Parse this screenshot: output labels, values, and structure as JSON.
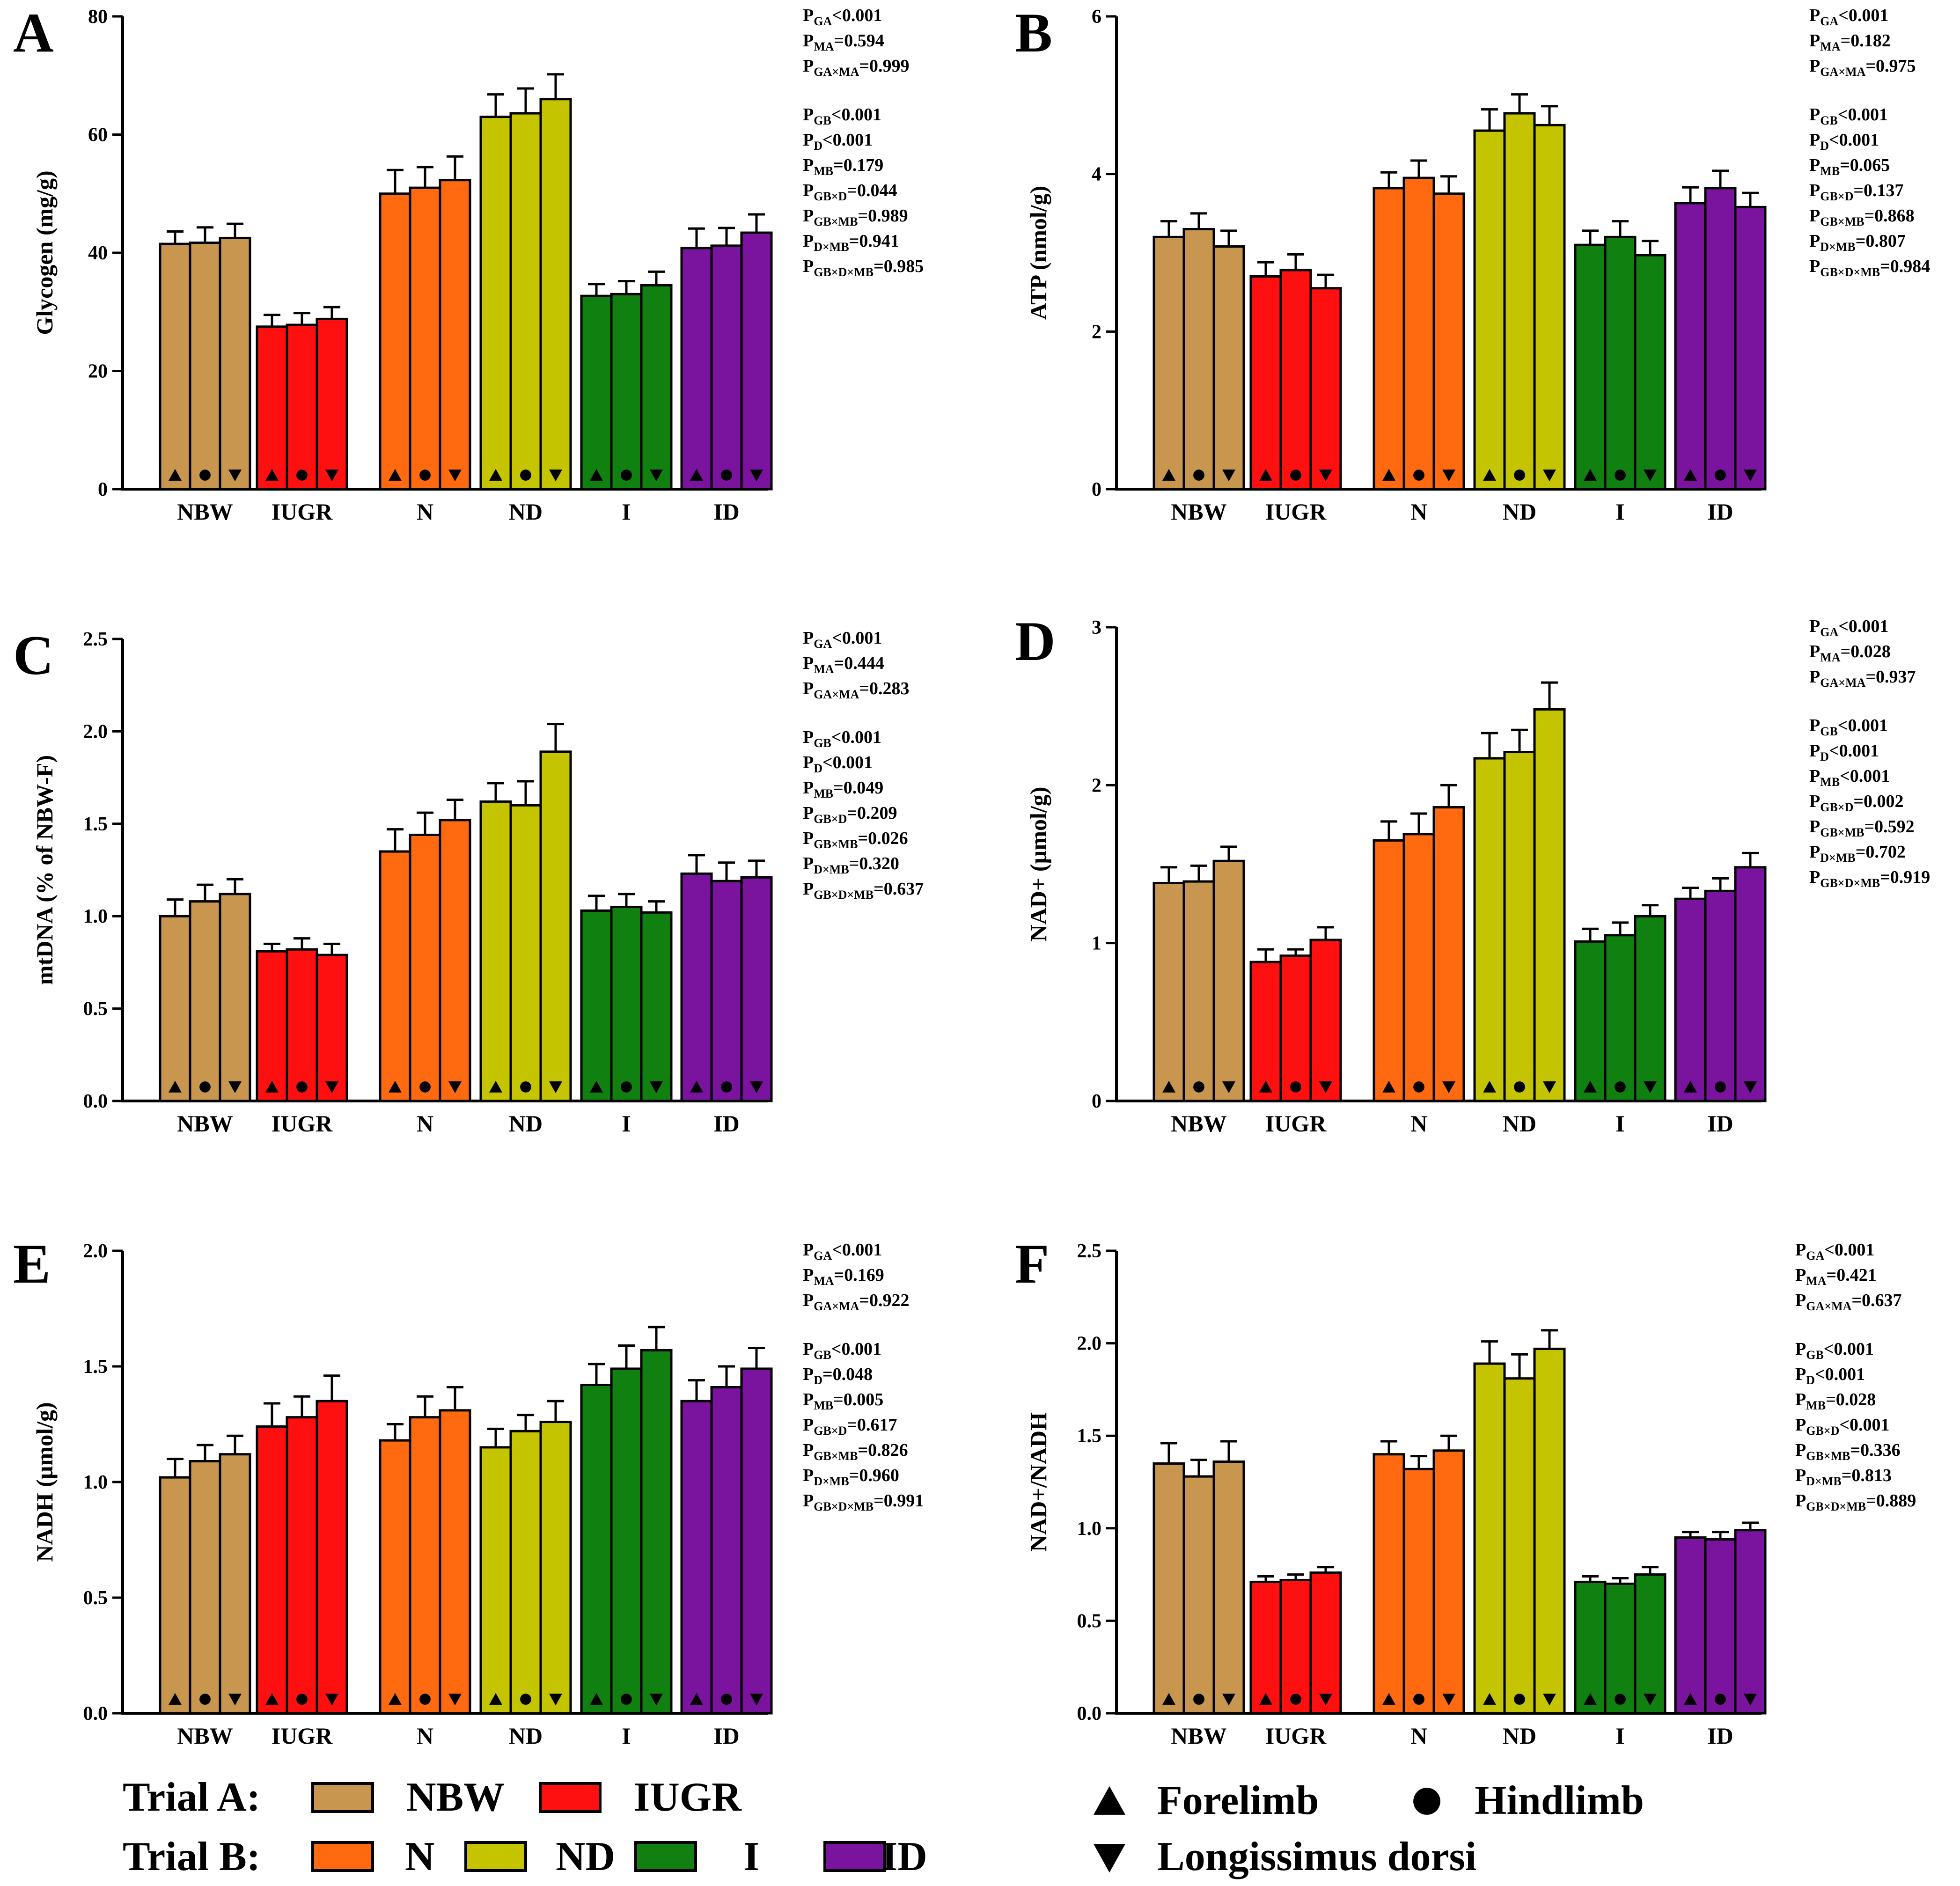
{
  "colors": {
    "NBW": "#C8964F",
    "IUGR": "#FF1010",
    "N": "#FF6A10",
    "ND": "#C4C400",
    "I": "#108010",
    "ID": "#7A149E"
  },
  "chart_data": [
    {
      "id": "A",
      "type": "bar",
      "panel_label": "A",
      "ylabel": "Glycogen (mg/g)",
      "ylim": [
        0,
        80
      ],
      "yticks": [
        "0",
        "20",
        "40",
        "60",
        "80"
      ],
      "categories": [
        "NBW",
        "IUGR",
        "N",
        "ND",
        "I",
        "ID"
      ],
      "series": [
        {
          "name": "Forelimb",
          "values": [
            41.5,
            27.5,
            50.0,
            63.0,
            32.7,
            40.8
          ]
        },
        {
          "name": "Hindlimb",
          "values": [
            41.7,
            27.8,
            51.0,
            63.6,
            33.0,
            41.2
          ]
        },
        {
          "name": "Longissimus dorsi",
          "values": [
            42.5,
            28.8,
            52.3,
            66.0,
            34.5,
            43.4
          ]
        }
      ],
      "errors": [
        [
          2.1,
          2.0,
          4.0,
          3.8,
          2.0,
          3.3
        ],
        [
          2.6,
          2.0,
          3.5,
          4.2,
          2.2,
          3.0
        ],
        [
          2.4,
          2.0,
          4.0,
          4.2,
          2.3,
          3.1
        ]
      ],
      "stats_a": [
        "P_GA<0.001",
        "P_MA=0.594",
        "P_GA×MA=0.999"
      ],
      "stats_b": [
        "P_GB<0.001",
        "P_D<0.001",
        "P_MB=0.179",
        "P_GB×D=0.044",
        "P_GB×MB=0.989",
        "P_D×MB=0.941",
        "P_GB×D×MB=0.985"
      ]
    },
    {
      "id": "B",
      "type": "bar",
      "panel_label": "B",
      "ylabel": "ATP (nmol/g)",
      "ylim": [
        0,
        6
      ],
      "yticks": [
        "0",
        "2",
        "4",
        "6"
      ],
      "categories": [
        "NBW",
        "IUGR",
        "N",
        "ND",
        "I",
        "ID"
      ],
      "series": [
        {
          "name": "Forelimb",
          "values": [
            3.2,
            2.7,
            3.82,
            4.55,
            3.1,
            3.63
          ]
        },
        {
          "name": "Hindlimb",
          "values": [
            3.3,
            2.78,
            3.95,
            4.77,
            3.2,
            3.82
          ]
        },
        {
          "name": "Longissimus dorsi",
          "values": [
            3.08,
            2.55,
            3.75,
            4.62,
            2.97,
            3.58
          ]
        }
      ],
      "errors": [
        [
          0.2,
          0.18,
          0.2,
          0.27,
          0.18,
          0.2
        ],
        [
          0.2,
          0.2,
          0.22,
          0.24,
          0.2,
          0.22
        ],
        [
          0.2,
          0.17,
          0.22,
          0.24,
          0.18,
          0.18
        ]
      ],
      "stats_a": [
        "P_GA<0.001",
        "P_MA=0.182",
        "P_GA×MA=0.975"
      ],
      "stats_b": [
        "P_GB<0.001",
        "P_D<0.001",
        "P_MB=0.065",
        "P_GB×D=0.137",
        "P_GB×MB=0.868",
        "P_D×MB=0.807",
        "P_GB×D×MB=0.984"
      ]
    },
    {
      "id": "C",
      "type": "bar",
      "panel_label": "C",
      "ylabel": "mtDNA (% of NBW-F)",
      "ylim": [
        0,
        2.5
      ],
      "yticks": [
        "0.0",
        "0.5",
        "1.0",
        "1.5",
        "2.0",
        "2.5"
      ],
      "categories": [
        "NBW",
        "IUGR",
        "N",
        "ND",
        "I",
        "ID"
      ],
      "series": [
        {
          "name": "Forelimb",
          "values": [
            1.0,
            0.81,
            1.35,
            1.62,
            1.03,
            1.23
          ]
        },
        {
          "name": "Hindlimb",
          "values": [
            1.08,
            0.82,
            1.44,
            1.6,
            1.05,
            1.19
          ]
        },
        {
          "name": "Longissimus dorsi",
          "values": [
            1.12,
            0.79,
            1.52,
            1.89,
            1.02,
            1.21
          ]
        }
      ],
      "errors": [
        [
          0.09,
          0.04,
          0.12,
          0.1,
          0.08,
          0.1
        ],
        [
          0.09,
          0.06,
          0.12,
          0.13,
          0.07,
          0.1
        ],
        [
          0.08,
          0.06,
          0.11,
          0.15,
          0.06,
          0.09
        ]
      ],
      "stats_a": [
        "P_GA<0.001",
        "P_MA=0.444",
        "P_GA×MA=0.283"
      ],
      "stats_b": [
        "P_GB<0.001",
        "P_D<0.001",
        "P_MB=0.049",
        "P_GB×D=0.209",
        "P_GB×MB=0.026",
        "P_D×MB=0.320",
        "P_GB×D×MB=0.637"
      ]
    },
    {
      "id": "D",
      "type": "bar",
      "panel_label": "D",
      "ylabel": "NAD+ (µmol/g)",
      "ylim": [
        0,
        3
      ],
      "yticks": [
        "0",
        "1",
        "2",
        "3"
      ],
      "categories": [
        "NBW",
        "IUGR",
        "N",
        "ND",
        "I",
        "ID"
      ],
      "series": [
        {
          "name": "Forelimb",
          "values": [
            1.38,
            0.88,
            1.65,
            2.17,
            1.01,
            1.28
          ]
        },
        {
          "name": "Hindlimb",
          "values": [
            1.39,
            0.92,
            1.69,
            2.21,
            1.05,
            1.33
          ]
        },
        {
          "name": "Longissimus dorsi",
          "values": [
            1.52,
            1.02,
            1.86,
            2.48,
            1.17,
            1.48
          ]
        }
      ],
      "errors": [
        [
          0.1,
          0.08,
          0.12,
          0.16,
          0.08,
          0.07
        ],
        [
          0.1,
          0.04,
          0.13,
          0.14,
          0.08,
          0.08
        ],
        [
          0.09,
          0.08,
          0.14,
          0.17,
          0.07,
          0.09
        ]
      ],
      "stats_a": [
        "P_GA<0.001",
        "P_MA=0.028",
        "P_GA×MA=0.937"
      ],
      "stats_b": [
        "P_GB<0.001",
        "P_D<0.001",
        "P_MB<0.001",
        "P_GB×D=0.002",
        "P_GB×MB=0.592",
        "P_D×MB=0.702",
        "P_GB×D×MB=0.919"
      ]
    },
    {
      "id": "E",
      "type": "bar",
      "panel_label": "E",
      "ylabel": "NADH (µmol/g)",
      "ylim": [
        0,
        2.0
      ],
      "yticks": [
        "0.0",
        "0.5",
        "1.0",
        "1.5",
        "2.0"
      ],
      "categories": [
        "NBW",
        "IUGR",
        "N",
        "ND",
        "I",
        "ID"
      ],
      "series": [
        {
          "name": "Forelimb",
          "values": [
            1.02,
            1.24,
            1.18,
            1.15,
            1.42,
            1.35
          ]
        },
        {
          "name": "Hindlimb",
          "values": [
            1.09,
            1.28,
            1.28,
            1.22,
            1.49,
            1.41
          ]
        },
        {
          "name": "Longissimus dorsi",
          "values": [
            1.12,
            1.35,
            1.31,
            1.26,
            1.57,
            1.49
          ]
        }
      ],
      "errors": [
        [
          0.08,
          0.1,
          0.07,
          0.08,
          0.09,
          0.09
        ],
        [
          0.07,
          0.09,
          0.09,
          0.07,
          0.1,
          0.09
        ],
        [
          0.08,
          0.11,
          0.1,
          0.09,
          0.1,
          0.09
        ]
      ],
      "stats_a": [
        "P_GA<0.001",
        "P_MA=0.169",
        "P_GA×MA=0.922"
      ],
      "stats_b": [
        "P_GB<0.001",
        "P_D=0.048",
        "P_MB=0.005",
        "P_GB×D=0.617",
        "P_GB×MB=0.826",
        "P_D×MB=0.960",
        "P_GB×D×MB=0.991"
      ]
    },
    {
      "id": "F",
      "type": "bar",
      "panel_label": "F",
      "ylabel": "NAD+/NADH",
      "ylim": [
        0,
        2.5
      ],
      "yticks": [
        "0.0",
        "0.5",
        "1.0",
        "1.5",
        "2.0",
        "2.5"
      ],
      "categories": [
        "NBW",
        "IUGR",
        "N",
        "ND",
        "I",
        "ID"
      ],
      "series": [
        {
          "name": "Forelimb",
          "values": [
            1.35,
            0.71,
            1.4,
            1.89,
            0.71,
            0.95
          ]
        },
        {
          "name": "Hindlimb",
          "values": [
            1.28,
            0.72,
            1.32,
            1.81,
            0.7,
            0.94
          ]
        },
        {
          "name": "Longissimus dorsi",
          "values": [
            1.36,
            0.76,
            1.42,
            1.97,
            0.75,
            0.99
          ]
        }
      ],
      "errors": [
        [
          0.11,
          0.03,
          0.07,
          0.12,
          0.03,
          0.03
        ],
        [
          0.09,
          0.03,
          0.07,
          0.13,
          0.03,
          0.04
        ],
        [
          0.11,
          0.03,
          0.08,
          0.1,
          0.04,
          0.04
        ]
      ],
      "stats_a": [
        "P_GA<0.001",
        "P_MA=0.421",
        "P_GA×MA=0.637"
      ],
      "stats_b": [
        "P_GB<0.001",
        "P_D<0.001",
        "P_MB=0.028",
        "P_GB×D<0.001",
        "P_GB×MB=0.336",
        "P_D×MB=0.813",
        "P_GB×D×MB=0.889"
      ]
    }
  ],
  "legend": {
    "trial_a_label": "Trial A:",
    "trial_b_label": "Trial B:",
    "trial_a_groups": [
      "NBW",
      "IUGR"
    ],
    "trial_b_groups": [
      "N",
      "ND",
      "I",
      "ID"
    ],
    "markers": [
      {
        "label": "Forelimb",
        "shape": "triangle-up"
      },
      {
        "label": "Hindlimb",
        "shape": "circle"
      },
      {
        "label": "Longissimus dorsi",
        "shape": "triangle-down"
      }
    ]
  }
}
